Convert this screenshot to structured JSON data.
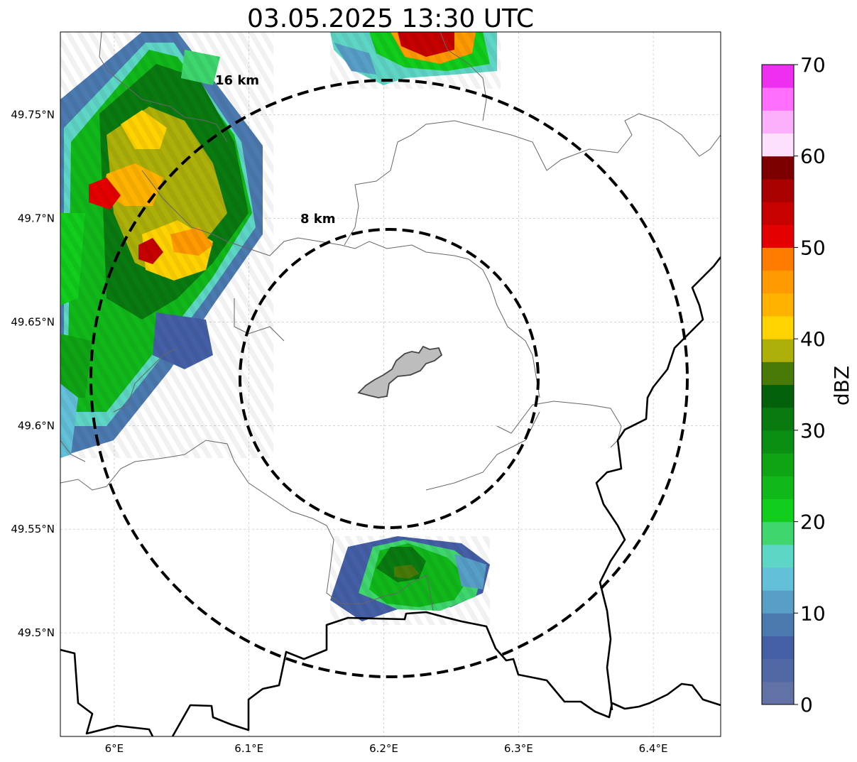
{
  "title": "03.05.2025 13:30 UTC",
  "map": {
    "lon_range": [
      5.96,
      6.45
    ],
    "lat_range": [
      49.45,
      49.79
    ],
    "lon_ticks": [
      {
        "value": 6.0,
        "label": "6°E"
      },
      {
        "value": 6.1,
        "label": "6.1°E"
      },
      {
        "value": 6.2,
        "label": "6.2°E"
      },
      {
        "value": 6.3,
        "label": "6.3°E"
      },
      {
        "value": 6.4,
        "label": "6.4°E"
      }
    ],
    "lat_ticks": [
      {
        "value": 49.75,
        "label": "49.75°N"
      },
      {
        "value": 49.7,
        "label": "49.7°N"
      },
      {
        "value": 49.65,
        "label": "49.65°N"
      },
      {
        "value": 49.6,
        "label": "49.6°N"
      },
      {
        "value": 49.55,
        "label": "49.55°N"
      },
      {
        "value": 49.5,
        "label": "49.5°N"
      }
    ],
    "grid": true,
    "radar_center": {
      "lon": 6.203,
      "lat": 49.624
    },
    "range_rings": [
      {
        "radius_km": 8,
        "label": "8 km"
      },
      {
        "radius_km": 16,
        "label": "16 km"
      }
    ]
  },
  "colorbar": {
    "label": "dBZ",
    "min": 0,
    "max": 70,
    "step": 2.5,
    "tick_values": [
      0,
      10,
      20,
      30,
      40,
      50,
      60,
      70
    ],
    "tick_labels": [
      "0",
      "10",
      "20",
      "30",
      "40",
      "50",
      "60",
      "70"
    ],
    "colors": [
      "#6272a6",
      "#5168a6",
      "#445fa6",
      "#4b7ab0",
      "#589fc8",
      "#62c0d8",
      "#5ed6c6",
      "#3fd66e",
      "#11cd1c",
      "#11b81a",
      "#0fa414",
      "#0a8f13",
      "#087a10",
      "#04610b",
      "#497a08",
      "#adb009",
      "#fed300",
      "#ffb300",
      "#ff9a00",
      "#ff7c00",
      "#e50000",
      "#c70000",
      "#a90000",
      "#7c0000",
      "#fce0fc",
      "#fcb0fc",
      "#ff6efc",
      "#ee2ef0"
    ]
  },
  "chart_data": {
    "type": "heatmap",
    "title": "03.05.2025 13:30 UTC",
    "colorbar_label": "dBZ",
    "value_range": [
      0,
      70
    ],
    "echo_cells": [
      {
        "lon": 6.03,
        "lat": 49.72,
        "dbz": 45
      },
      {
        "lon": 6.05,
        "lat": 49.68,
        "dbz": 50
      },
      {
        "lon": 6.21,
        "lat": 49.785,
        "dbz": 55
      },
      {
        "lon": 6.215,
        "lat": 49.53,
        "dbz": 28
      }
    ]
  }
}
